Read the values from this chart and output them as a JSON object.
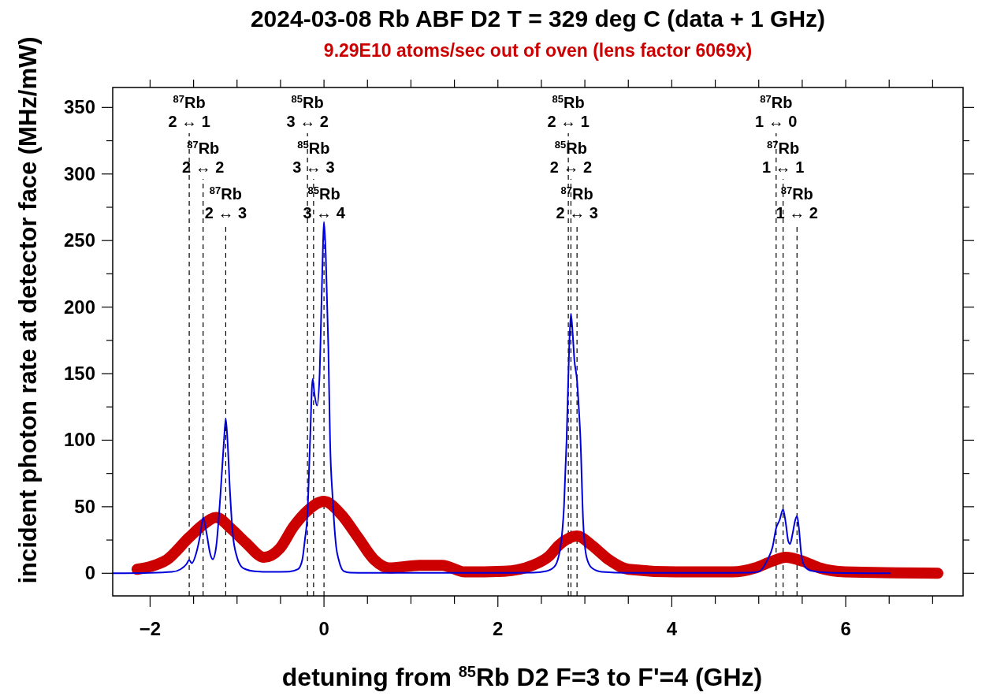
{
  "chart_data": {
    "type": "line",
    "title": "2024-03-08 Rb ABF D2 T = 329 deg C (data + 1 GHz)",
    "subtitle": "9.29E10 atoms/sec out of oven (lens factor 6069x)",
    "xlabel": "detuning from  $^{85}$Rb D2 F=3 to F'=4 (GHz)",
    "ylabel": "incident photon rate at detector face (MHz/mW)",
    "xlim": [
      -2.43,
      7.35
    ],
    "ylim": [
      -17,
      365
    ],
    "xticks": [
      {
        "value": -2,
        "label": "−2"
      },
      {
        "value": -1.5,
        "label": null
      },
      {
        "value": -1,
        "label": null
      },
      {
        "value": -0.5,
        "label": null
      },
      0,
      {
        "value": 0.5,
        "label": null
      },
      {
        "value": 1,
        "label": null
      },
      {
        "value": 1.5,
        "label": null
      },
      2,
      {
        "value": 2.5,
        "label": null
      },
      {
        "value": 3,
        "label": null
      },
      {
        "value": 3.5,
        "label": null
      },
      4,
      {
        "value": 4.5,
        "label": null
      },
      {
        "value": 5,
        "label": null
      },
      {
        "value": 5.5,
        "label": null
      },
      6,
      {
        "value": 6.5,
        "label": null
      },
      {
        "value": 7,
        "label": null
      }
    ],
    "yticks": [
      0,
      {
        "value": 25,
        "label": null
      },
      50,
      {
        "value": 75,
        "label": null
      },
      100,
      {
        "value": 125,
        "label": null
      },
      150,
      {
        "value": 175,
        "label": null
      },
      200,
      {
        "value": 225,
        "label": null
      },
      250,
      {
        "value": 275,
        "label": null
      },
      300,
      {
        "value": 325,
        "label": null
      },
      350
    ],
    "series": [
      {
        "type": "line",
        "color": "#cc0000",
        "x": [
          -2.15,
          -2.0,
          -1.81,
          -1.55,
          -1.39,
          -1.24,
          -1.06,
          -0.9,
          -0.69,
          -0.51,
          -0.35,
          -0.19,
          0,
          0.2,
          0.39,
          0.58,
          0.75,
          1.1,
          1.36,
          1.62,
          2.07,
          2.4,
          2.59,
          2.7,
          2.91,
          3.08,
          3.28,
          3.5,
          4.05,
          4.7,
          4.96,
          5.15,
          5.31,
          5.51,
          5.7,
          5.99,
          7.06
        ],
        "values": [
          3,
          5,
          10,
          27,
          36.5,
          42,
          33,
          23,
          12,
          18.5,
          35,
          47,
          54,
          44,
          27,
          10,
          4,
          6,
          6,
          1,
          1.5,
          6,
          13,
          21,
          28,
          21,
          10,
          3,
          1,
          1,
          4,
          9,
          12,
          9,
          4,
          1,
          0
        ]
      },
      {
        "type": "line",
        "color": "#0000dd",
        "x": [
          -2.43,
          -2.0,
          -1.75,
          -1.65,
          -1.58,
          -1.55,
          -1.52,
          -1.47,
          -1.42,
          -1.39,
          -1.35,
          -1.31,
          -1.28,
          -1.24,
          -1.19,
          -1.15,
          -1.13,
          -1.11,
          -1.08,
          -1.05,
          -1.0,
          -0.95,
          -0.9,
          -0.8,
          -0.6,
          -0.4,
          -0.3,
          -0.25,
          -0.22,
          -0.19,
          -0.16,
          -0.13,
          -0.11,
          -0.08,
          -0.05,
          -0.03,
          -0.01,
          0,
          0.02,
          0.05,
          0.07,
          0.1,
          0.14,
          0.17,
          0.23,
          0.3,
          0.5,
          1,
          2,
          2.4,
          2.55,
          2.65,
          2.72,
          2.76,
          2.79,
          2.82,
          2.84,
          2.86,
          2.88,
          2.91,
          2.93,
          2.95,
          2.98,
          3.02,
          3.08,
          3.2,
          3.5,
          4.5,
          4.9,
          5.0,
          5.1,
          5.16,
          5.2,
          5.24,
          5.28,
          5.31,
          5.34,
          5.36,
          5.39,
          5.42,
          5.44,
          5.46,
          5.49,
          5.53,
          5.6,
          5.8,
          6.51
        ],
        "values": [
          0,
          0.3,
          1,
          3,
          7,
          10,
          7.6,
          15,
          30,
          42,
          30,
          15,
          10.5,
          20,
          60,
          100,
          116,
          100,
          60,
          30,
          12,
          5,
          3,
          1.5,
          1,
          1.2,
          3,
          10,
          25,
          45,
          100,
          146,
          135,
          126,
          150,
          200,
          250,
          264,
          240,
          170,
          99,
          56,
          20,
          10,
          1.5,
          0.5,
          0.3,
          0.3,
          0.3,
          0.5,
          1.5,
          5,
          20,
          50,
          100,
          170,
          195,
          180,
          160,
          145,
          125,
          100,
          40,
          12,
          4,
          1,
          0.3,
          0.3,
          0.5,
          1.3,
          10,
          20,
          34,
          40,
          48,
          38,
          24,
          22,
          30,
          40,
          43,
          35,
          14,
          5,
          2,
          0.5,
          0
        ]
      }
    ],
    "ref_lines": [
      {
        "axis": "x",
        "value": -1.55,
        "label": "$^{87}$Rb\n2 ↔ 1",
        "color": "#000000",
        "line_style": "dashed"
      },
      {
        "axis": "x",
        "value": -1.39,
        "label": "$^{87}$Rb\n2 ↔ 2",
        "color": "#000000",
        "line_style": "dashed"
      },
      {
        "axis": "x",
        "value": -1.13,
        "label": "$^{87}$Rb\n2 ↔ 3",
        "color": "#000000",
        "line_style": "dashed"
      },
      {
        "axis": "x",
        "value": -0.19,
        "label": "$^{85}$Rb\n3 ↔ 2",
        "color": "#000000",
        "line_style": "dashed"
      },
      {
        "axis": "x",
        "value": -0.12,
        "label": "$^{85}$Rb\n3 ↔ 3",
        "color": "#000000",
        "line_style": "dashed"
      },
      {
        "axis": "x",
        "value": 0,
        "label": "$^{85}$Rb\n3 ↔ 4",
        "color": "#000000",
        "line_style": "dashed"
      },
      {
        "axis": "x",
        "value": 2.81,
        "label": "$^{85}$Rb\n2 ↔ 1",
        "color": "#000000",
        "line_style": "dashed"
      },
      {
        "axis": "x",
        "value": 2.84,
        "label": "$^{85}$Rb\n2 ↔ 2",
        "color": "#000000",
        "line_style": "dashed"
      },
      {
        "axis": "x",
        "value": 2.91,
        "label": "$^{87}$Rb\n2 ↔ 3",
        "color": "#000000",
        "line_style": "dashed"
      },
      {
        "axis": "x",
        "value": 5.2,
        "label": "$^{87}$Rb\n1 ↔ 0",
        "color": "#000000",
        "line_style": "dashed"
      },
      {
        "axis": "x",
        "value": 5.28,
        "label": "$^{87}$Rb\n1 ↔ 1",
        "color": "#000000",
        "line_style": "dashed"
      },
      {
        "axis": "x",
        "value": 5.44,
        "label": "$^{87}$Rb\n1 ↔ 2",
        "color": "#000000",
        "line_style": "dashed"
      }
    ]
  }
}
